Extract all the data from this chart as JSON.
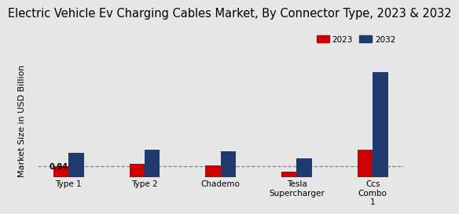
{
  "title": "Electric Vehicle Ev Charging Cables Market, By Connector Type, 2023 & 2032",
  "ylabel": "Market Size in USD Billion",
  "categories": [
    "Type 1",
    "Type 2",
    "Chademo",
    "Tesla\nSupercharger",
    "Ccs\nCombo\n1"
  ],
  "values_2023": [
    0.94,
    1.15,
    1.05,
    0.45,
    2.5
  ],
  "values_2032": [
    2.2,
    2.5,
    2.3,
    1.7,
    9.5
  ],
  "color_2023": "#cc0000",
  "color_2032": "#1f3b6e",
  "annotation_text": "0.94",
  "background_color": "#e6e6e6",
  "bar_width": 0.2,
  "dashed_line_y": 0.94,
  "legend_labels": [
    "2023",
    "2032"
  ],
  "title_fontsize": 10.5,
  "label_fontsize": 7.5,
  "ylabel_fontsize": 8
}
